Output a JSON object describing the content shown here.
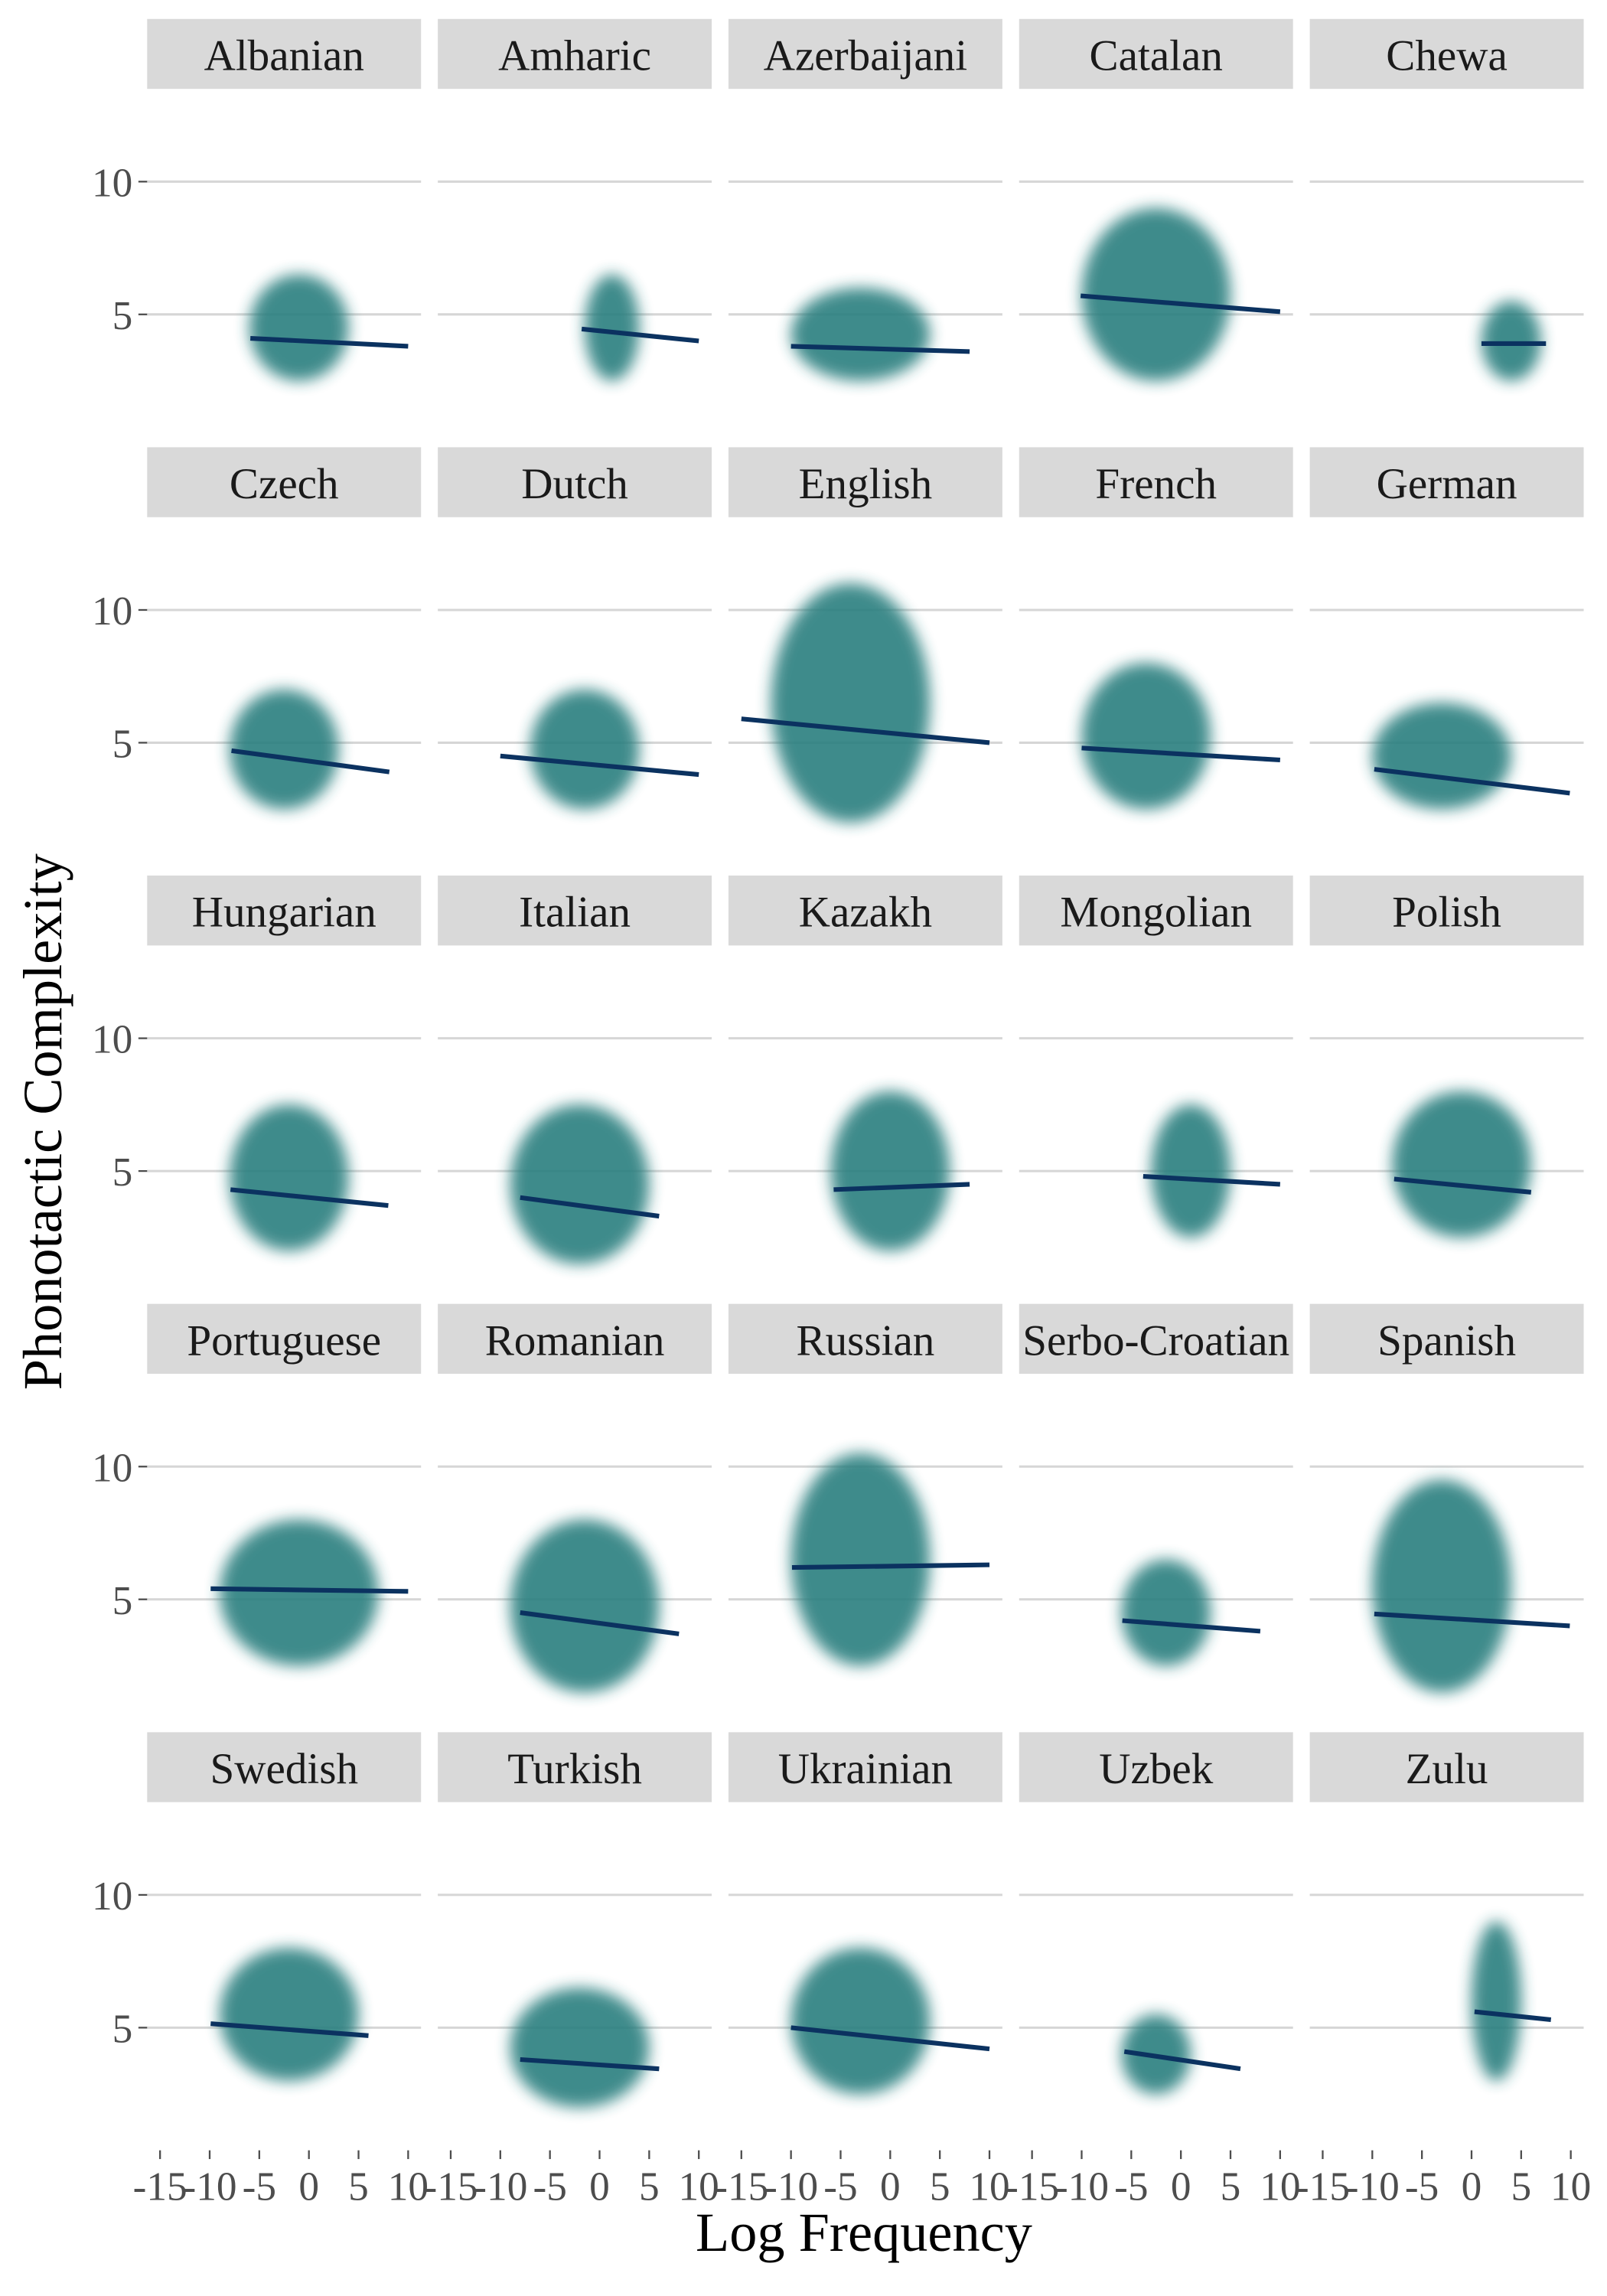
{
  "chart_data": {
    "type": "facet-scatter",
    "xlabel": "Log Frequency",
    "ylabel": "Phonotactic Complexity",
    "xlim": [
      -16.3,
      11.3
    ],
    "ylim": [
      0.6,
      13.0
    ],
    "xticks": [
      -15,
      -10,
      -5,
      0,
      5,
      10
    ],
    "yticks": [
      5,
      10
    ],
    "grid": true,
    "point_color": "#2a7f7f",
    "fit_color": "#0b3260",
    "panels": [
      {
        "title": "Albanian",
        "x_range": [
          -6,
          4
        ],
        "y_range": [
          2.5,
          6.5
        ],
        "fit_x": [
          -5.9,
          10
        ],
        "fit_y": [
          4.1,
          3.8
        ]
      },
      {
        "title": "Amharic",
        "x_range": [
          -1.5,
          4
        ],
        "y_range": [
          2.5,
          6.5
        ],
        "fit_x": [
          -1.8,
          10
        ],
        "fit_y": [
          4.45,
          4.0
        ]
      },
      {
        "title": "Azerbaijani",
        "x_range": [
          -10,
          4
        ],
        "y_range": [
          2.5,
          6
        ],
        "fit_x": [
          -10,
          8
        ],
        "fit_y": [
          3.8,
          3.6
        ]
      },
      {
        "title": "Catalan",
        "x_range": [
          -10,
          5
        ],
        "y_range": [
          2.5,
          9
        ],
        "fit_x": [
          -10.1,
          10
        ],
        "fit_y": [
          5.7,
          5.1
        ]
      },
      {
        "title": "Chewa",
        "x_range": [
          1,
          7
        ],
        "y_range": [
          2.5,
          5.5
        ],
        "fit_x": [
          1,
          7.5
        ],
        "fit_y": [
          3.9,
          3.9
        ]
      },
      {
        "title": "Czech",
        "x_range": [
          -8,
          3
        ],
        "y_range": [
          2.5,
          7
        ],
        "fit_x": [
          -7.8,
          8.1
        ],
        "fit_y": [
          4.7,
          3.9
        ]
      },
      {
        "title": "Dutch",
        "x_range": [
          -7,
          4
        ],
        "y_range": [
          2.5,
          7
        ],
        "fit_x": [
          -10,
          10
        ],
        "fit_y": [
          4.5,
          3.8
        ]
      },
      {
        "title": "English",
        "x_range": [
          -12,
          4
        ],
        "y_range": [
          2,
          11
        ],
        "fit_x": [
          -15,
          10
        ],
        "fit_y": [
          5.9,
          5.0
        ]
      },
      {
        "title": "French",
        "x_range": [
          -10,
          3
        ],
        "y_range": [
          2.5,
          8
        ],
        "fit_x": [
          -10,
          10
        ],
        "fit_y": [
          4.8,
          4.35
        ]
      },
      {
        "title": "German",
        "x_range": [
          -10,
          4
        ],
        "y_range": [
          2.5,
          6.5
        ],
        "fit_x": [
          -9.8,
          9.9
        ],
        "fit_y": [
          4.0,
          3.1
        ]
      },
      {
        "title": "Hungarian",
        "x_range": [
          -8,
          4
        ],
        "y_range": [
          2,
          7.5
        ],
        "fit_x": [
          -7.9,
          8
        ],
        "fit_y": [
          4.3,
          3.7
        ]
      },
      {
        "title": "Italian",
        "x_range": [
          -9,
          5
        ],
        "y_range": [
          1.5,
          7.5
        ],
        "fit_x": [
          -8,
          6
        ],
        "fit_y": [
          4.0,
          3.3
        ]
      },
      {
        "title": "Kazakh",
        "x_range": [
          -6,
          6
        ],
        "y_range": [
          2,
          8
        ],
        "fit_x": [
          -5.7,
          8
        ],
        "fit_y": [
          4.3,
          4.5
        ]
      },
      {
        "title": "Mongolian",
        "x_range": [
          -3,
          5
        ],
        "y_range": [
          2.5,
          7.5
        ],
        "fit_x": [
          -3.8,
          10
        ],
        "fit_y": [
          4.8,
          4.5
        ]
      },
      {
        "title": "Polish",
        "x_range": [
          -8,
          6
        ],
        "y_range": [
          2.5,
          8
        ],
        "fit_x": [
          -7.8,
          6
        ],
        "fit_y": [
          4.7,
          4.2
        ]
      },
      {
        "title": "Portuguese",
        "x_range": [
          -9,
          7
        ],
        "y_range": [
          2.5,
          8
        ],
        "fit_x": [
          -9.9,
          10
        ],
        "fit_y": [
          5.4,
          5.3
        ]
      },
      {
        "title": "Romanian",
        "x_range": [
          -9,
          6
        ],
        "y_range": [
          1.5,
          8
        ],
        "fit_x": [
          -8,
          8
        ],
        "fit_y": [
          4.5,
          3.7
        ]
      },
      {
        "title": "Russian",
        "x_range": [
          -10,
          4
        ],
        "y_range": [
          2.5,
          10.5
        ],
        "fit_x": [
          -9.9,
          10
        ],
        "fit_y": [
          6.2,
          6.3
        ]
      },
      {
        "title": "Serbo-Croatian",
        "x_range": [
          -6,
          3
        ],
        "y_range": [
          2.5,
          6.5
        ],
        "fit_x": [
          -5.9,
          8
        ],
        "fit_y": [
          4.2,
          3.8
        ]
      },
      {
        "title": "Spanish",
        "x_range": [
          -10,
          4
        ],
        "y_range": [
          1.5,
          9.5
        ],
        "fit_x": [
          -9.8,
          9.9
        ],
        "fit_y": [
          4.45,
          4.0
        ]
      },
      {
        "title": "Swedish",
        "x_range": [
          -9,
          5
        ],
        "y_range": [
          3,
          8
        ],
        "fit_x": [
          -9.9,
          6
        ],
        "fit_y": [
          5.15,
          4.7
        ]
      },
      {
        "title": "Turkish",
        "x_range": [
          -9,
          5
        ],
        "y_range": [
          2,
          6.5
        ],
        "fit_x": [
          -8,
          6
        ],
        "fit_y": [
          3.8,
          3.45
        ]
      },
      {
        "title": "Ukrainian",
        "x_range": [
          -10,
          4
        ],
        "y_range": [
          2.5,
          8
        ],
        "fit_x": [
          -10,
          10
        ],
        "fit_y": [
          5.0,
          4.2
        ]
      },
      {
        "title": "Uzbek",
        "x_range": [
          -6,
          1
        ],
        "y_range": [
          2.5,
          5.5
        ],
        "fit_x": [
          -5.7,
          6
        ],
        "fit_y": [
          4.1,
          3.45
        ]
      },
      {
        "title": "Zulu",
        "x_range": [
          0,
          5
        ],
        "y_range": [
          3,
          9
        ],
        "fit_x": [
          0.3,
          8
        ],
        "fit_y": [
          5.6,
          5.3
        ]
      }
    ]
  }
}
